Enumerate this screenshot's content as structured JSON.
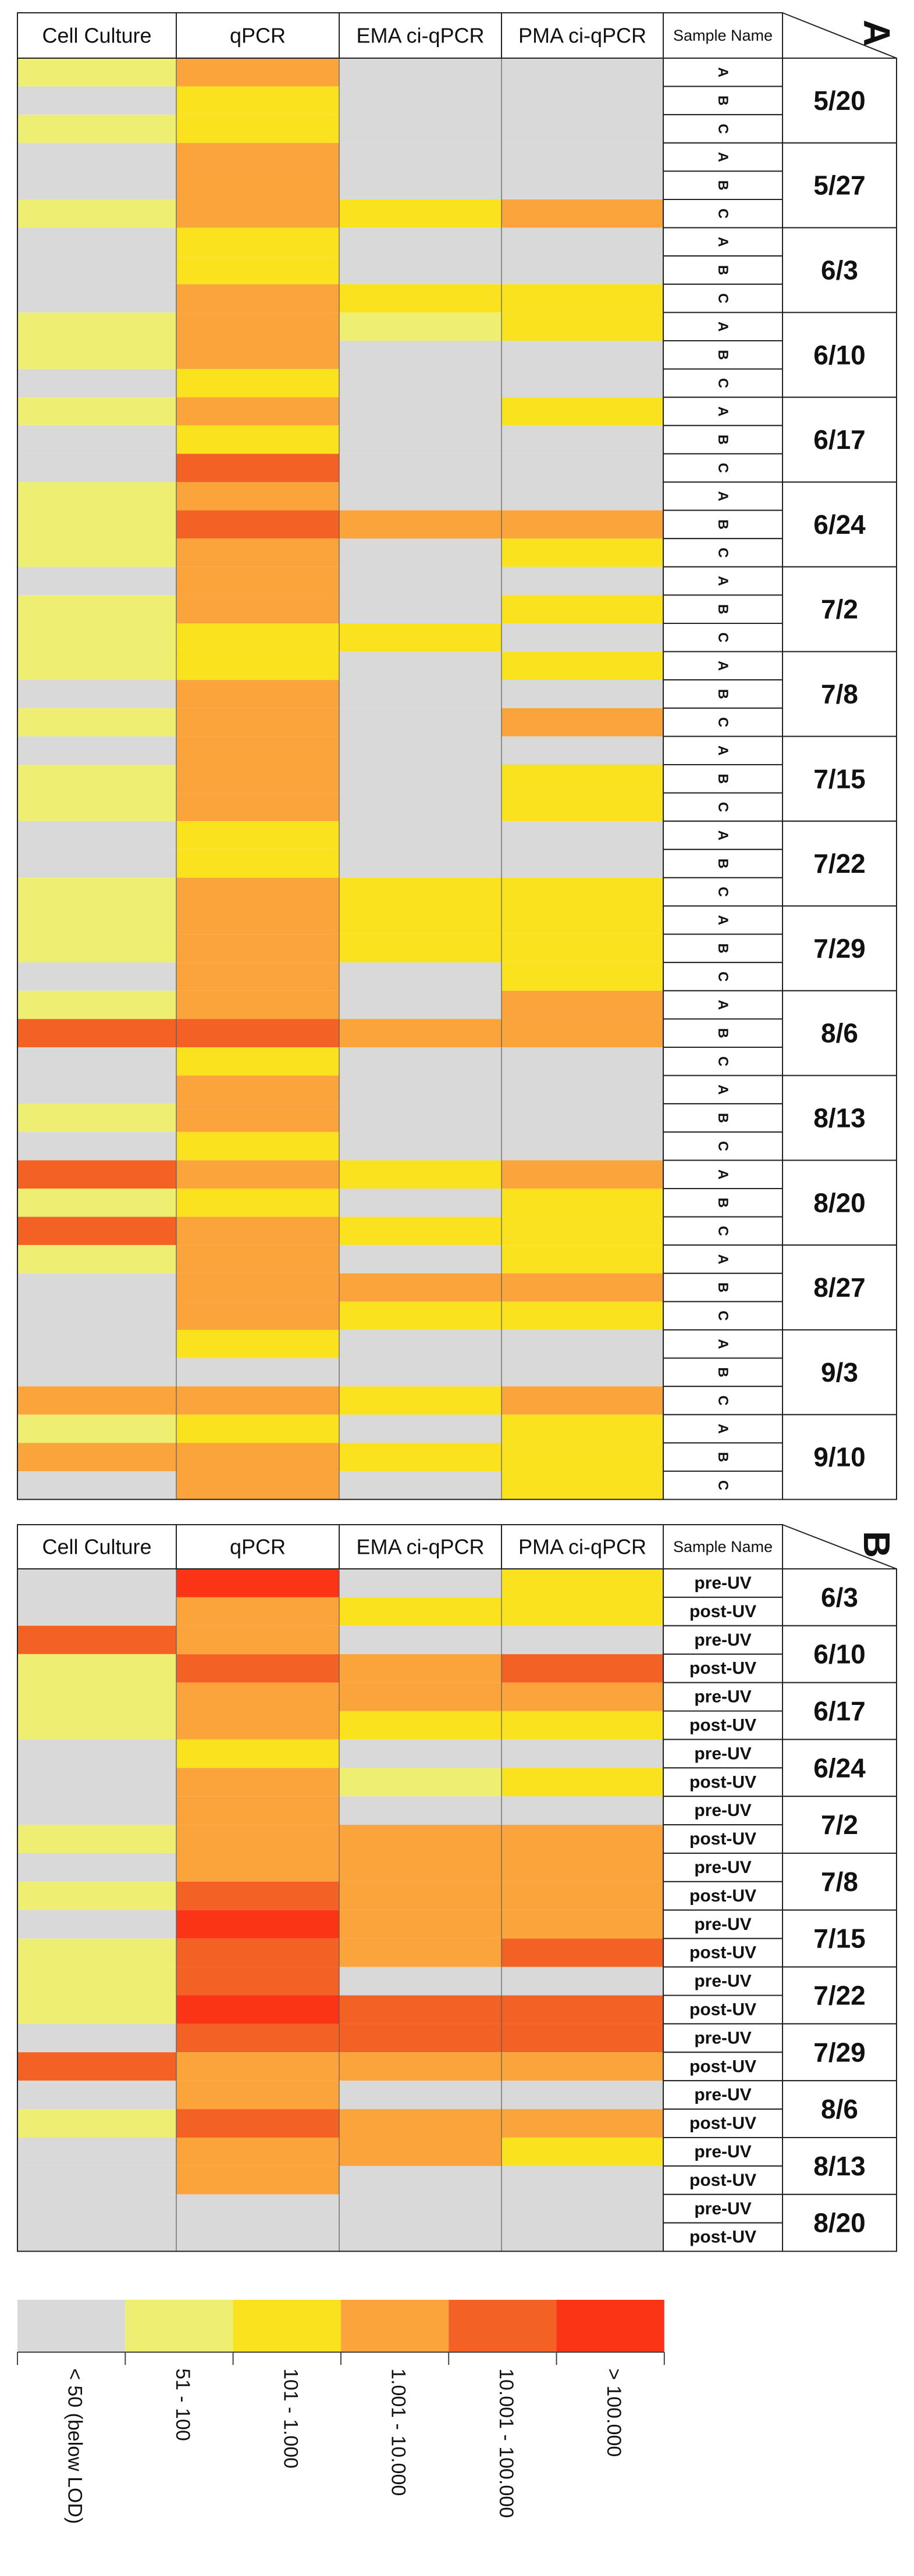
{
  "colors": {
    "gray": "#d9d9d9",
    "lightyellow": "#eeee72",
    "yellow": "#fbe21f",
    "orange": "#fba43b",
    "darkorange": "#f46124",
    "red": "#fa3414",
    "grid": "#5a5a5a",
    "border": "#222222"
  },
  "chart_data": [
    {
      "type": "heatmap",
      "panel_label": "A",
      "columns": [
        "Cell Culture",
        "qPCR",
        "EMA ci-qPCR",
        "PMA ci-qPCR"
      ],
      "sample_column_header": "Sample Name",
      "groups": [
        {
          "date": "5/20",
          "samples": [
            "A",
            "B",
            "C"
          ],
          "cells": [
            [
              "lightyellow",
              "orange",
              "gray",
              "gray"
            ],
            [
              "gray",
              "yellow",
              "gray",
              "gray"
            ],
            [
              "lightyellow",
              "yellow",
              "gray",
              "gray"
            ]
          ]
        },
        {
          "date": "5/27",
          "samples": [
            "A",
            "B",
            "C"
          ],
          "cells": [
            [
              "gray",
              "orange",
              "gray",
              "gray"
            ],
            [
              "gray",
              "orange",
              "gray",
              "gray"
            ],
            [
              "lightyellow",
              "orange",
              "yellow",
              "orange"
            ]
          ]
        },
        {
          "date": "6/3",
          "samples": [
            "A",
            "B",
            "C"
          ],
          "cells": [
            [
              "gray",
              "yellow",
              "gray",
              "gray"
            ],
            [
              "gray",
              "yellow",
              "gray",
              "gray"
            ],
            [
              "gray",
              "orange",
              "yellow",
              "yellow"
            ]
          ]
        },
        {
          "date": "6/10",
          "samples": [
            "A",
            "B",
            "C"
          ],
          "cells": [
            [
              "lightyellow",
              "orange",
              "lightyellow",
              "yellow"
            ],
            [
              "lightyellow",
              "orange",
              "gray",
              "gray"
            ],
            [
              "gray",
              "yellow",
              "gray",
              "gray"
            ]
          ]
        },
        {
          "date": "6/17",
          "samples": [
            "A",
            "B",
            "C"
          ],
          "cells": [
            [
              "lightyellow",
              "orange",
              "gray",
              "yellow"
            ],
            [
              "gray",
              "yellow",
              "gray",
              "gray"
            ],
            [
              "gray",
              "darkorange",
              "gray",
              "gray"
            ]
          ]
        },
        {
          "date": "6/24",
          "samples": [
            "A",
            "B",
            "C"
          ],
          "cells": [
            [
              "lightyellow",
              "orange",
              "gray",
              "gray"
            ],
            [
              "lightyellow",
              "darkorange",
              "orange",
              "orange"
            ],
            [
              "lightyellow",
              "orange",
              "gray",
              "yellow"
            ]
          ]
        },
        {
          "date": "7/2",
          "samples": [
            "A",
            "B",
            "C"
          ],
          "cells": [
            [
              "gray",
              "orange",
              "gray",
              "gray"
            ],
            [
              "lightyellow",
              "orange",
              "gray",
              "yellow"
            ],
            [
              "lightyellow",
              "yellow",
              "yellow",
              "gray"
            ]
          ]
        },
        {
          "date": "7/8",
          "samples": [
            "A",
            "B",
            "C"
          ],
          "cells": [
            [
              "lightyellow",
              "yellow",
              "gray",
              "yellow"
            ],
            [
              "gray",
              "orange",
              "gray",
              "gray"
            ],
            [
              "lightyellow",
              "orange",
              "gray",
              "orange"
            ]
          ]
        },
        {
          "date": "7/15",
          "samples": [
            "A",
            "B",
            "C"
          ],
          "cells": [
            [
              "gray",
              "orange",
              "gray",
              "gray"
            ],
            [
              "lightyellow",
              "orange",
              "gray",
              "yellow"
            ],
            [
              "lightyellow",
              "orange",
              "gray",
              "yellow"
            ]
          ]
        },
        {
          "date": "7/22",
          "samples": [
            "A",
            "B",
            "C"
          ],
          "cells": [
            [
              "gray",
              "yellow",
              "gray",
              "gray"
            ],
            [
              "gray",
              "yellow",
              "gray",
              "gray"
            ],
            [
              "lightyellow",
              "orange",
              "yellow",
              "yellow"
            ]
          ]
        },
        {
          "date": "7/29",
          "samples": [
            "A",
            "B",
            "C"
          ],
          "cells": [
            [
              "lightyellow",
              "orange",
              "yellow",
              "yellow"
            ],
            [
              "lightyellow",
              "orange",
              "yellow",
              "yellow"
            ],
            [
              "gray",
              "orange",
              "gray",
              "yellow"
            ]
          ]
        },
        {
          "date": "8/6",
          "samples": [
            "A",
            "B",
            "C"
          ],
          "cells": [
            [
              "lightyellow",
              "orange",
              "gray",
              "orange"
            ],
            [
              "darkorange",
              "darkorange",
              "orange",
              "orange"
            ],
            [
              "gray",
              "yellow",
              "gray",
              "gray"
            ]
          ]
        },
        {
          "date": "8/13",
          "samples": [
            "A",
            "B",
            "C"
          ],
          "cells": [
            [
              "gray",
              "orange",
              "gray",
              "gray"
            ],
            [
              "lightyellow",
              "orange",
              "gray",
              "gray"
            ],
            [
              "gray",
              "yellow",
              "gray",
              "gray"
            ]
          ]
        },
        {
          "date": "8/20",
          "samples": [
            "A",
            "B",
            "C"
          ],
          "cells": [
            [
              "darkorange",
              "orange",
              "yellow",
              "orange"
            ],
            [
              "lightyellow",
              "yellow",
              "gray",
              "yellow"
            ],
            [
              "darkorange",
              "orange",
              "yellow",
              "yellow"
            ]
          ]
        },
        {
          "date": "8/27",
          "samples": [
            "A",
            "B",
            "C"
          ],
          "cells": [
            [
              "lightyellow",
              "orange",
              "gray",
              "yellow"
            ],
            [
              "gray",
              "orange",
              "orange",
              "orange"
            ],
            [
              "gray",
              "orange",
              "yellow",
              "yellow"
            ]
          ]
        },
        {
          "date": "9/3",
          "samples": [
            "A",
            "B",
            "C"
          ],
          "cells": [
            [
              "gray",
              "yellow",
              "gray",
              "gray"
            ],
            [
              "gray",
              "gray",
              "gray",
              "gray"
            ],
            [
              "orange",
              "orange",
              "yellow",
              "orange"
            ]
          ]
        },
        {
          "date": "9/10",
          "samples": [
            "A",
            "B",
            "C"
          ],
          "cells": [
            [
              "lightyellow",
              "yellow",
              "gray",
              "yellow"
            ],
            [
              "orange",
              "orange",
              "yellow",
              "yellow"
            ],
            [
              "gray",
              "orange",
              "gray",
              "yellow"
            ]
          ]
        }
      ]
    },
    {
      "type": "heatmap",
      "panel_label": "B",
      "columns": [
        "Cell Culture",
        "qPCR",
        "EMA ci-qPCR",
        "PMA ci-qPCR"
      ],
      "sample_column_header": "Sample Name",
      "groups": [
        {
          "date": "6/3",
          "samples": [
            "pre-UV",
            "post-UV"
          ],
          "cells": [
            [
              "gray",
              "red",
              "gray",
              "yellow"
            ],
            [
              "gray",
              "orange",
              "yellow",
              "yellow"
            ]
          ]
        },
        {
          "date": "6/10",
          "samples": [
            "pre-UV",
            "post-UV"
          ],
          "cells": [
            [
              "darkorange",
              "orange",
              "gray",
              "gray"
            ],
            [
              "lightyellow",
              "darkorange",
              "orange",
              "darkorange"
            ]
          ]
        },
        {
          "date": "6/17",
          "samples": [
            "pre-UV",
            "post-UV"
          ],
          "cells": [
            [
              "lightyellow",
              "orange",
              "orange",
              "orange"
            ],
            [
              "lightyellow",
              "orange",
              "yellow",
              "yellow"
            ]
          ]
        },
        {
          "date": "6/24",
          "samples": [
            "pre-UV",
            "post-UV"
          ],
          "cells": [
            [
              "gray",
              "yellow",
              "gray",
              "gray"
            ],
            [
              "gray",
              "orange",
              "lightyellow",
              "yellow"
            ]
          ]
        },
        {
          "date": "7/2",
          "samples": [
            "pre-UV",
            "post-UV"
          ],
          "cells": [
            [
              "gray",
              "orange",
              "gray",
              "gray"
            ],
            [
              "lightyellow",
              "orange",
              "orange",
              "orange"
            ]
          ]
        },
        {
          "date": "7/8",
          "samples": [
            "pre-UV",
            "post-UV"
          ],
          "cells": [
            [
              "gray",
              "orange",
              "orange",
              "orange"
            ],
            [
              "lightyellow",
              "darkorange",
              "orange",
              "orange"
            ]
          ]
        },
        {
          "date": "7/15",
          "samples": [
            "pre-UV",
            "post-UV"
          ],
          "cells": [
            [
              "gray",
              "red",
              "orange",
              "orange"
            ],
            [
              "lightyellow",
              "darkorange",
              "orange",
              "darkorange"
            ]
          ]
        },
        {
          "date": "7/22",
          "samples": [
            "pre-UV",
            "post-UV"
          ],
          "cells": [
            [
              "lightyellow",
              "darkorange",
              "gray",
              "gray"
            ],
            [
              "lightyellow",
              "red",
              "darkorange",
              "darkorange"
            ]
          ]
        },
        {
          "date": "7/29",
          "samples": [
            "pre-UV",
            "post-UV"
          ],
          "cells": [
            [
              "gray",
              "darkorange",
              "darkorange",
              "darkorange"
            ],
            [
              "darkorange",
              "orange",
              "orange",
              "orange"
            ]
          ]
        },
        {
          "date": "8/6",
          "samples": [
            "pre-UV",
            "post-UV"
          ],
          "cells": [
            [
              "gray",
              "orange",
              "gray",
              "gray"
            ],
            [
              "lightyellow",
              "darkorange",
              "orange",
              "orange"
            ]
          ]
        },
        {
          "date": "8/13",
          "samples": [
            "pre-UV",
            "post-UV"
          ],
          "cells": [
            [
              "gray",
              "orange",
              "orange",
              "yellow"
            ],
            [
              "gray",
              "orange",
              "gray",
              "gray"
            ]
          ]
        },
        {
          "date": "8/20",
          "samples": [
            "pre-UV",
            "post-UV"
          ],
          "cells": [
            [
              "gray",
              "gray",
              "gray",
              "gray"
            ],
            [
              "gray",
              "gray",
              "gray",
              "gray"
            ]
          ]
        }
      ]
    }
  ],
  "legend": [
    {
      "color": "gray",
      "label": "< 50 (below LOD)"
    },
    {
      "color": "lightyellow",
      "label": "51 - 100"
    },
    {
      "color": "yellow",
      "label": "101 - 1.000"
    },
    {
      "color": "orange",
      "label": "1.001 - 10.000"
    },
    {
      "color": "darkorange",
      "label": "10.001 - 100.000"
    },
    {
      "color": "red",
      "label": "> 100.000"
    }
  ]
}
